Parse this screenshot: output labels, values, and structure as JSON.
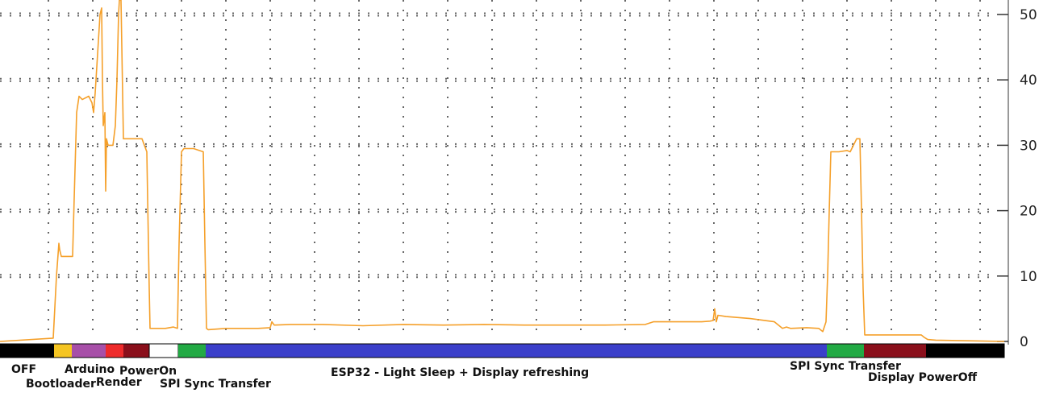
{
  "chart_data": {
    "type": "line",
    "title": "",
    "xlabel": "",
    "ylabel": "",
    "ylim": [
      0,
      52
    ],
    "yticks": [
      0,
      10,
      20,
      30,
      40,
      50
    ],
    "xlim": [
      0,
      1245
    ],
    "grid": true,
    "series": [
      {
        "color": "#f5a02a",
        "x": [
          0,
          66,
          70,
          73,
          74,
          76,
          78,
          84,
          90,
          92,
          95,
          98,
          102,
          110,
          114,
          116,
          118,
          120,
          122,
          124,
          126,
          127,
          128,
          130,
          131,
          132,
          134,
          136,
          138,
          140,
          143,
          145,
          147,
          148,
          150,
          152,
          153,
          155,
          157,
          160,
          164,
          170,
          176,
          182,
          185,
          186,
          188,
          195,
          205,
          215,
          220,
          222,
          225,
          228,
          240,
          252,
          254,
          256,
          258,
          280,
          300,
          320,
          335,
          337,
          340,
          360,
          400,
          450,
          500,
          550,
          600,
          650,
          700,
          750,
          800,
          810,
          830,
          850,
          870,
          880,
          884,
          886,
          888,
          890,
          900,
          930,
          960,
          970,
          975,
          980,
          1000,
          1015,
          1020,
          1024,
          1026,
          1028,
          1030,
          1040,
          1050,
          1054,
          1058,
          1062,
          1066,
          1068,
          1070,
          1072,
          1080,
          1100,
          1130,
          1142,
          1146,
          1150,
          1160,
          1200,
          1245
        ],
        "y": [
          0,
          0.5,
          10,
          15,
          14,
          13,
          13,
          13,
          13,
          22,
          35,
          37.5,
          37,
          37.5,
          36.5,
          35,
          38,
          42,
          46,
          50,
          51,
          40,
          33,
          35,
          23,
          31,
          30,
          30,
          30,
          30,
          33,
          40,
          50,
          54,
          56,
          38,
          31,
          31,
          31,
          31,
          31,
          31,
          31,
          29,
          8,
          2,
          2,
          2,
          2,
          2.2,
          2,
          15,
          29,
          29.5,
          29.5,
          29,
          15,
          2,
          1.8,
          2,
          2,
          2,
          2.1,
          3,
          2.5,
          2.6,
          2.6,
          2.4,
          2.6,
          2.5,
          2.6,
          2.5,
          2.5,
          2.5,
          2.6,
          3,
          3,
          3,
          3,
          3.1,
          3.2,
          5,
          3,
          4,
          3.8,
          3.5,
          3,
          2,
          2.2,
          2,
          2.1,
          2,
          1.5,
          3,
          10,
          20,
          29,
          29,
          29.2,
          29,
          30,
          31,
          31,
          20,
          8,
          1,
          1,
          1,
          1,
          1,
          0.6,
          0.3,
          0.2,
          0.1,
          0
        ]
      }
    ],
    "phases": [
      {
        "label": "OFF",
        "color": "#000000",
        "start": 0,
        "end": 67
      },
      {
        "label": "Bootloader",
        "color": "#f5c522",
        "start": 67,
        "end": 89
      },
      {
        "label": "Arduino",
        "color": "#a74fa8",
        "start": 89,
        "end": 131
      },
      {
        "label": "Render",
        "color": "#ee2b2b",
        "start": 131,
        "end": 153
      },
      {
        "label": "PowerOn",
        "color": "#8a0f1b",
        "start": 153,
        "end": 185
      },
      {
        "label": "",
        "color": "#ffffff",
        "start": 185,
        "end": 221
      },
      {
        "label": "SPI Sync Transfer",
        "color": "#22aa44",
        "start": 221,
        "end": 255
      },
      {
        "label": "ESP32 - Light Sleep + Display refreshing",
        "color": "#3b3fca",
        "start": 255,
        "end": 1025
      },
      {
        "label": "SPI Sync Transfer",
        "color": "#22aa44",
        "start": 1025,
        "end": 1071
      },
      {
        "label": "Display PowerOff",
        "color": "#8a0f1b",
        "start": 1071,
        "end": 1148
      },
      {
        "label": "",
        "color": "#000000",
        "start": 1148,
        "end": 1245
      }
    ]
  }
}
